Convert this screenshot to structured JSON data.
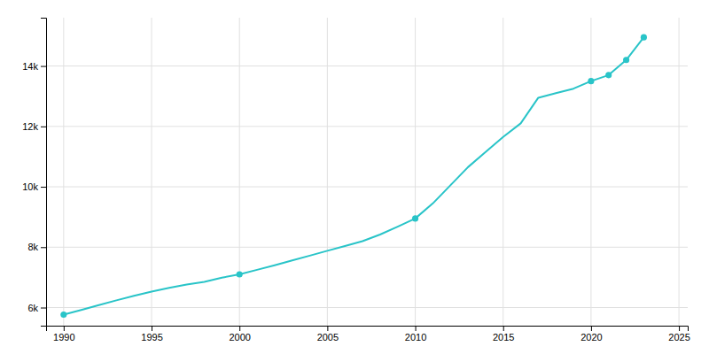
{
  "chart_data": {
    "type": "line",
    "x": [
      1990,
      1991,
      1992,
      1993,
      1994,
      1995,
      1996,
      1997,
      1998,
      1999,
      2000,
      2001,
      2002,
      2003,
      2004,
      2005,
      2006,
      2007,
      2008,
      2009,
      2010,
      2011,
      2012,
      2013,
      2014,
      2015,
      2016,
      2017,
      2018,
      2019,
      2020,
      2021,
      2022,
      2023
    ],
    "series": [
      {
        "type": "line",
        "color": "#29c4c8",
        "values": [
          5765,
          5920,
          6080,
          6240,
          6390,
          6530,
          6650,
          6760,
          6850,
          6990,
          7100,
          7250,
          7400,
          7560,
          7720,
          7880,
          8040,
          8200,
          8420,
          8680,
          8950,
          9450,
          10050,
          10650,
          11150,
          11650,
          12100,
          12950,
          13100,
          13250,
          13500,
          13700,
          14200,
          14950
        ]
      },
      {
        "type": "scatter",
        "color": "#29c4c8",
        "marker": "circle",
        "x": [
          1990,
          2000,
          2010,
          2020,
          2021,
          2022,
          2023
        ],
        "values": [
          5765,
          7100,
          8950,
          13500,
          13700,
          14200,
          14950
        ]
      }
    ],
    "xlim": [
      1989,
      2025.5
    ],
    "ylim": [
      5400,
      15600
    ],
    "xticks": [
      1990,
      1995,
      2000,
      2005,
      2010,
      2015,
      2020,
      2025
    ],
    "yticks": [
      {
        "value": 6000,
        "label": "6k"
      },
      {
        "value": 8000,
        "label": "8k"
      },
      {
        "value": 10000,
        "label": "10k"
      },
      {
        "value": 12000,
        "label": "12k"
      },
      {
        "value": 14000,
        "label": "14k"
      }
    ],
    "grid": true
  }
}
